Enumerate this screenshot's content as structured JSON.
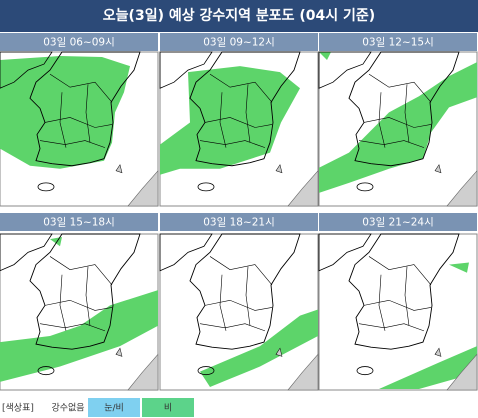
{
  "title": "오늘(3일) 예상 강수지역 분포도 (04시 기준)",
  "panels": [
    {
      "label": "03일 06~09시"
    },
    {
      "label": "03일 09~12시"
    },
    {
      "label": "03일 12~15시"
    },
    {
      "label": "03일 15~18시"
    },
    {
      "label": "03일 18~21시"
    },
    {
      "label": "03일 21~24시"
    }
  ],
  "legend": {
    "heading": "[색상표]",
    "items": [
      "강수없음",
      "눈/비",
      "비"
    ]
  }
}
